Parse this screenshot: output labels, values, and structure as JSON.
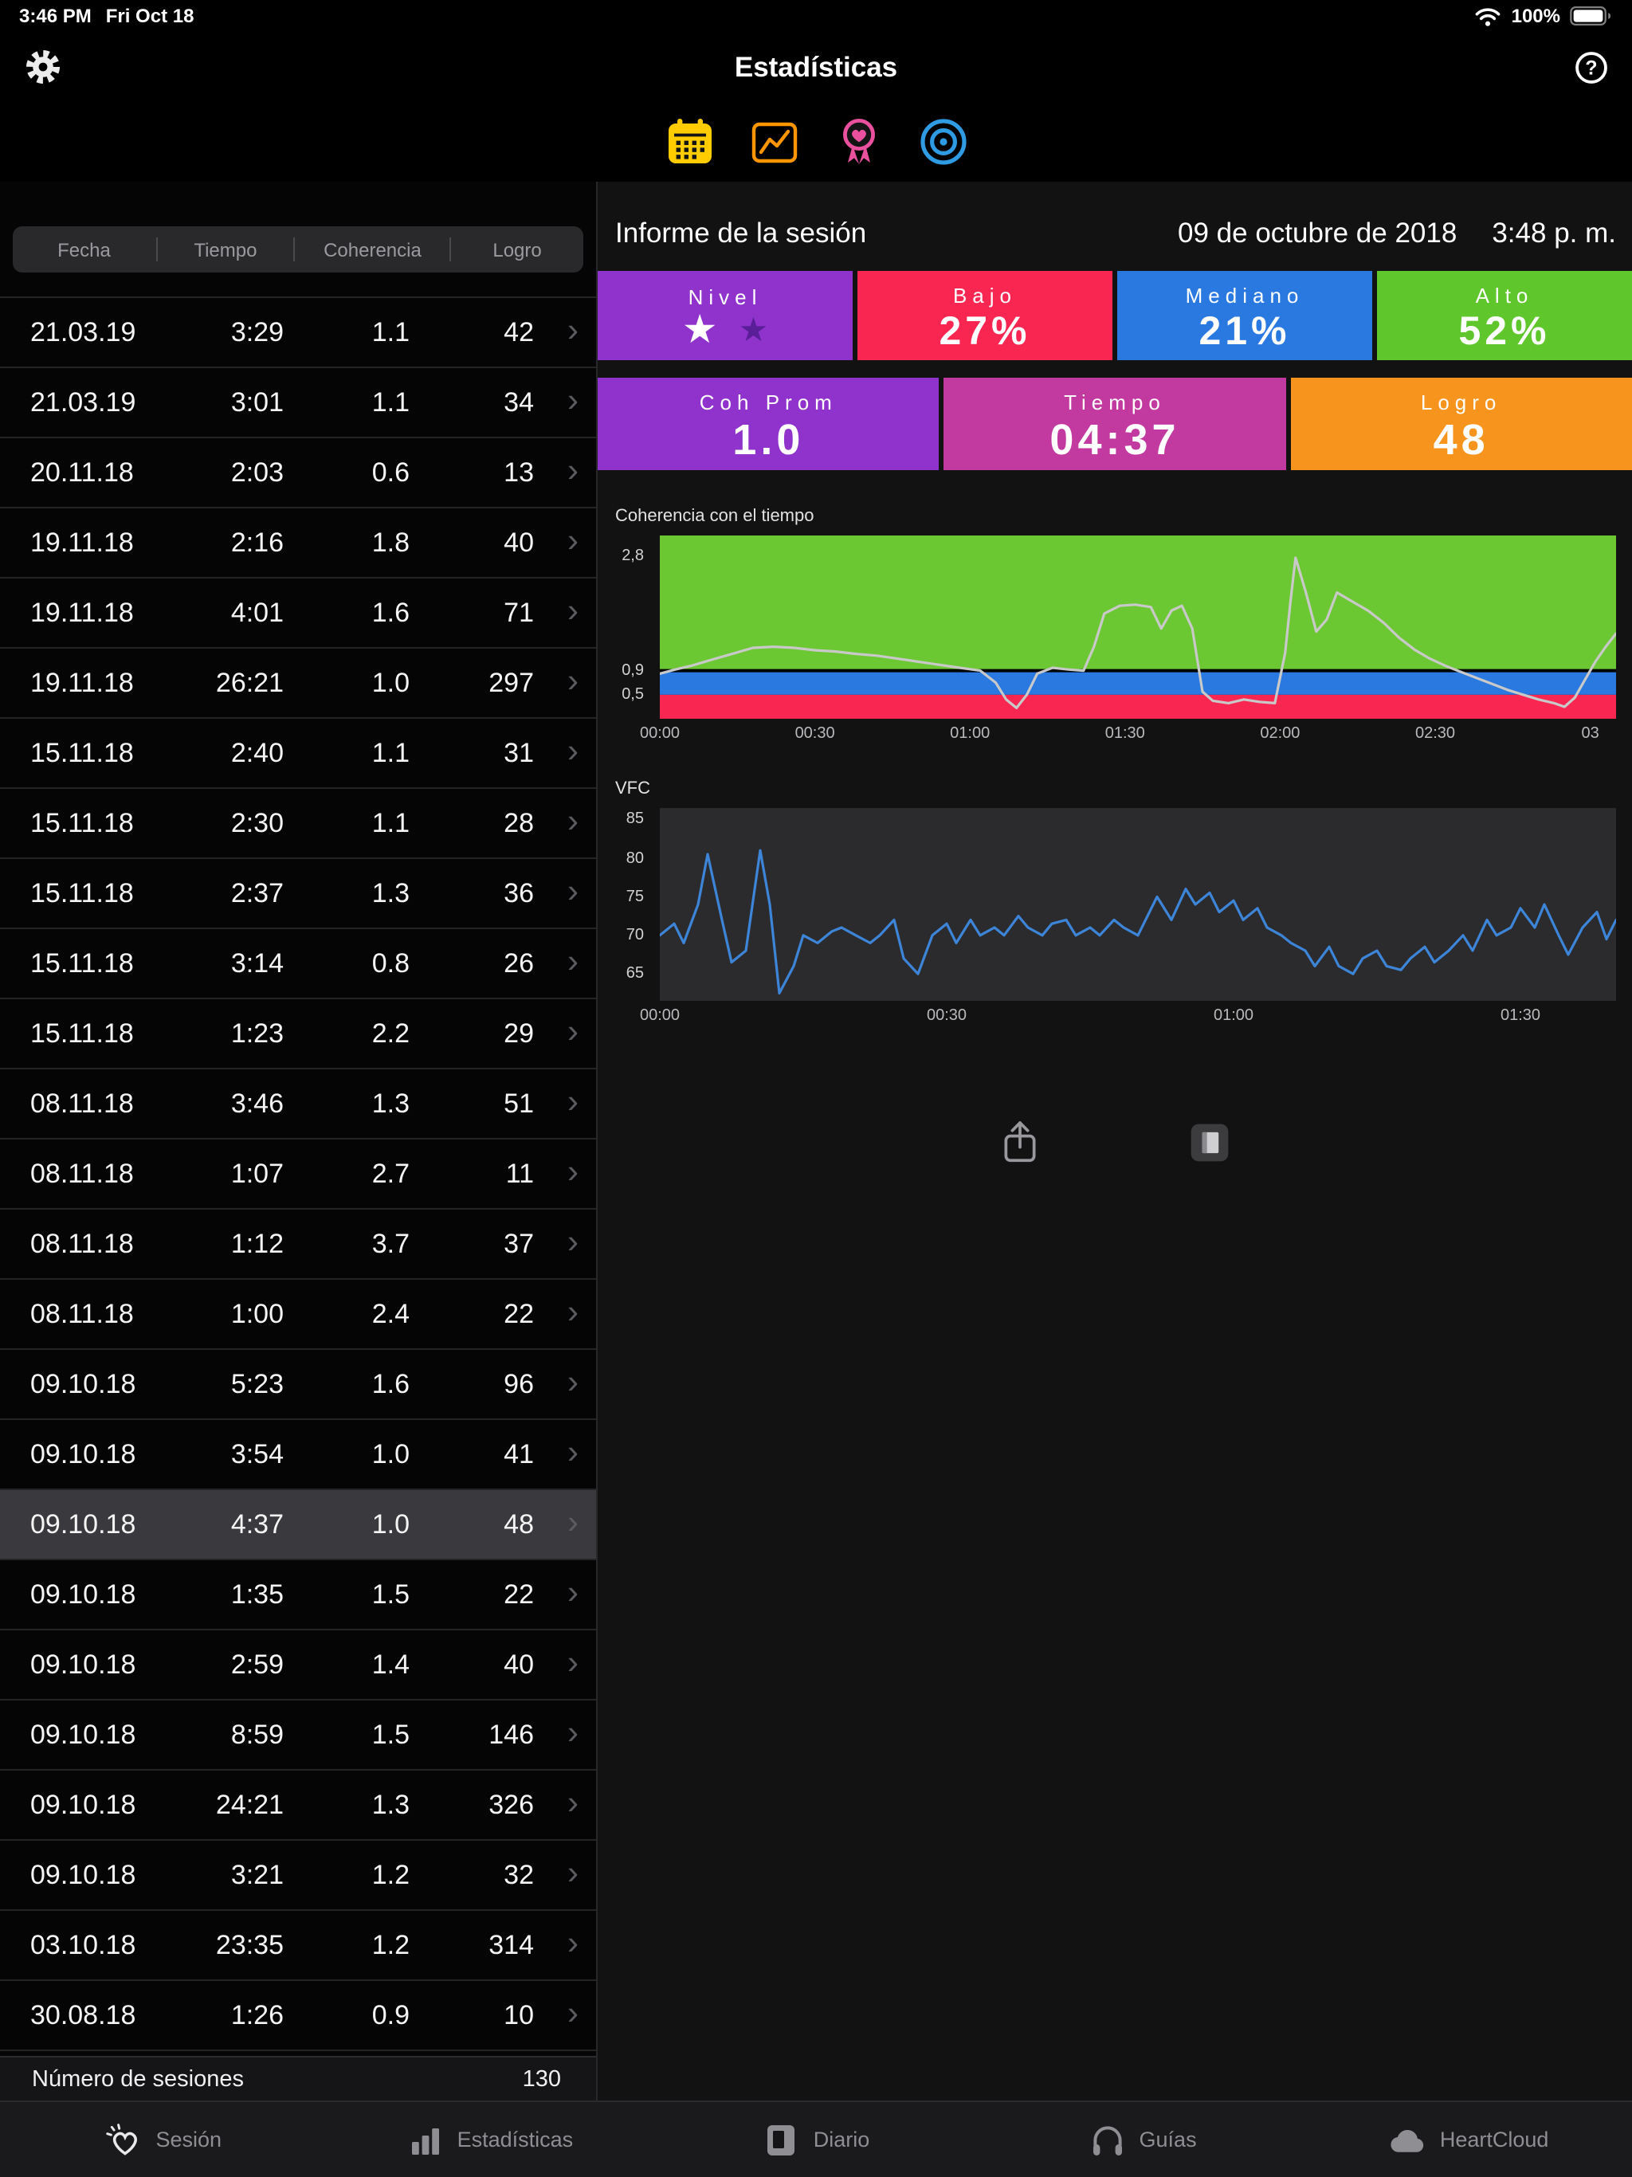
{
  "status_bar": {
    "time": "3:46 PM",
    "date": "Fri Oct 18",
    "battery_percent": "100%"
  },
  "nav": {
    "title": "Estadísticas"
  },
  "subtabs": [
    {
      "name": "sessions",
      "icon": "calendar-icon",
      "selected": true
    },
    {
      "name": "progress",
      "icon": "line-chart-icon",
      "selected": false
    },
    {
      "name": "awards",
      "icon": "award-icon",
      "selected": false
    },
    {
      "name": "goals",
      "icon": "target-icon",
      "selected": false
    }
  ],
  "table": {
    "columns": [
      "Fecha",
      "Tiempo",
      "Coherencia",
      "Logro"
    ],
    "rows": [
      {
        "fecha": "21.03.19",
        "tiempo": "3:29",
        "coherencia": "1.1",
        "logro": "42"
      },
      {
        "fecha": "21.03.19",
        "tiempo": "3:01",
        "coherencia": "1.1",
        "logro": "34"
      },
      {
        "fecha": "20.11.18",
        "tiempo": "2:03",
        "coherencia": "0.6",
        "logro": "13"
      },
      {
        "fecha": "19.11.18",
        "tiempo": "2:16",
        "coherencia": "1.8",
        "logro": "40"
      },
      {
        "fecha": "19.11.18",
        "tiempo": "4:01",
        "coherencia": "1.6",
        "logro": "71"
      },
      {
        "fecha": "19.11.18",
        "tiempo": "26:21",
        "coherencia": "1.0",
        "logro": "297"
      },
      {
        "fecha": "15.11.18",
        "tiempo": "2:40",
        "coherencia": "1.1",
        "logro": "31"
      },
      {
        "fecha": "15.11.18",
        "tiempo": "2:30",
        "coherencia": "1.1",
        "logro": "28"
      },
      {
        "fecha": "15.11.18",
        "tiempo": "2:37",
        "coherencia": "1.3",
        "logro": "36"
      },
      {
        "fecha": "15.11.18",
        "tiempo": "3:14",
        "coherencia": "0.8",
        "logro": "26"
      },
      {
        "fecha": "15.11.18",
        "tiempo": "1:23",
        "coherencia": "2.2",
        "logro": "29"
      },
      {
        "fecha": "08.11.18",
        "tiempo": "3:46",
        "coherencia": "1.3",
        "logro": "51"
      },
      {
        "fecha": "08.11.18",
        "tiempo": "1:07",
        "coherencia": "2.7",
        "logro": "11"
      },
      {
        "fecha": "08.11.18",
        "tiempo": "1:12",
        "coherencia": "3.7",
        "logro": "37"
      },
      {
        "fecha": "08.11.18",
        "tiempo": "1:00",
        "coherencia": "2.4",
        "logro": "22"
      },
      {
        "fecha": "09.10.18",
        "tiempo": "5:23",
        "coherencia": "1.6",
        "logro": "96"
      },
      {
        "fecha": "09.10.18",
        "tiempo": "3:54",
        "coherencia": "1.0",
        "logro": "41"
      },
      {
        "fecha": "09.10.18",
        "tiempo": "4:37",
        "coherencia": "1.0",
        "logro": "48",
        "selected": true
      },
      {
        "fecha": "09.10.18",
        "tiempo": "1:35",
        "coherencia": "1.5",
        "logro": "22"
      },
      {
        "fecha": "09.10.18",
        "tiempo": "2:59",
        "coherencia": "1.4",
        "logro": "40"
      },
      {
        "fecha": "09.10.18",
        "tiempo": "8:59",
        "coherencia": "1.5",
        "logro": "146"
      },
      {
        "fecha": "09.10.18",
        "tiempo": "24:21",
        "coherencia": "1.3",
        "logro": "326"
      },
      {
        "fecha": "09.10.18",
        "tiempo": "3:21",
        "coherencia": "1.2",
        "logro": "32"
      },
      {
        "fecha": "03.10.18",
        "tiempo": "23:35",
        "coherencia": "1.2",
        "logro": "314"
      },
      {
        "fecha": "30.08.18",
        "tiempo": "1:26",
        "coherencia": "0.9",
        "logro": "10"
      }
    ],
    "footer_label": "Número de sesiones",
    "footer_value": "130"
  },
  "report": {
    "title": "Informe de la sesión",
    "date": "09 de octubre de 2018",
    "time": "3:48 p. m.",
    "stats_row1": [
      {
        "label": "Nivel",
        "color": "#8F33CC",
        "stars": [
          "#FFFFFF",
          "#5A1E99"
        ]
      },
      {
        "label": "Bajo",
        "value": "27%",
        "color": "#F92652"
      },
      {
        "label": "Mediano",
        "value": "21%",
        "color": "#2979E0"
      },
      {
        "label": "Alto",
        "value": "52%",
        "color": "#5FC62B"
      }
    ],
    "stats_row2": [
      {
        "label": "Coh Prom",
        "value": "1.0",
        "color": "#8F33CC"
      },
      {
        "label": "Tiempo",
        "value": "04:37",
        "color": "#C23AA0"
      },
      {
        "label": "Logro",
        "value": "48",
        "color": "#F7941D"
      }
    ]
  },
  "chart_data": [
    {
      "type": "line",
      "title": "Coherencia con el tiempo",
      "x_domain": [
        0,
        185
      ],
      "y_domain": [
        0.1,
        3.15
      ],
      "line_color": "#c9c9c9",
      "zones": [
        {
          "from": 0.1,
          "to": 0.5,
          "color": "#F92652",
          "label": "low"
        },
        {
          "from": 0.5,
          "to": 0.9,
          "color": "#2979E0",
          "label": "medium"
        },
        {
          "from": 0.9,
          "to": 3.15,
          "color": "#6CC832",
          "label": "high"
        }
      ],
      "threshold": {
        "value": 0.9,
        "color": "#000000"
      },
      "y_ticks": [
        {
          "value": 2.8,
          "label": "2,8"
        },
        {
          "value": 0.9,
          "label": "0,9"
        },
        {
          "value": 0.5,
          "label": "0,5"
        }
      ],
      "x_ticks": [
        {
          "value": 0,
          "label": "00:00"
        },
        {
          "value": 30,
          "label": "00:30"
        },
        {
          "value": 60,
          "label": "01:00"
        },
        {
          "value": 90,
          "label": "01:30"
        },
        {
          "value": 120,
          "label": "02:00"
        },
        {
          "value": 150,
          "label": "02:30"
        },
        {
          "value": 180,
          "label": "03"
        }
      ],
      "points": [
        [
          0,
          0.85
        ],
        [
          3,
          0.92
        ],
        [
          6,
          0.98
        ],
        [
          10,
          1.08
        ],
        [
          14,
          1.18
        ],
        [
          18,
          1.28
        ],
        [
          22,
          1.3
        ],
        [
          26,
          1.28
        ],
        [
          30,
          1.24
        ],
        [
          34,
          1.22
        ],
        [
          38,
          1.18
        ],
        [
          42,
          1.15
        ],
        [
          46,
          1.1
        ],
        [
          50,
          1.05
        ],
        [
          54,
          1.0
        ],
        [
          58,
          0.95
        ],
        [
          62,
          0.9
        ],
        [
          65,
          0.7
        ],
        [
          67,
          0.42
        ],
        [
          69,
          0.28
        ],
        [
          71,
          0.5
        ],
        [
          73,
          0.85
        ],
        [
          76,
          0.95
        ],
        [
          79,
          0.92
        ],
        [
          82,
          0.9
        ],
        [
          84,
          1.3
        ],
        [
          86,
          1.85
        ],
        [
          89,
          1.98
        ],
        [
          92,
          2.0
        ],
        [
          95,
          1.96
        ],
        [
          97,
          1.6
        ],
        [
          99,
          1.9
        ],
        [
          101,
          1.98
        ],
        [
          103,
          1.6
        ],
        [
          105,
          0.55
        ],
        [
          107,
          0.4
        ],
        [
          110,
          0.36
        ],
        [
          113,
          0.42
        ],
        [
          116,
          0.38
        ],
        [
          119,
          0.36
        ],
        [
          121,
          1.2
        ],
        [
          122,
          2.05
        ],
        [
          123,
          2.78
        ],
        [
          125,
          2.2
        ],
        [
          127,
          1.55
        ],
        [
          129,
          1.75
        ],
        [
          131,
          2.2
        ],
        [
          134,
          2.05
        ],
        [
          137,
          1.9
        ],
        [
          140,
          1.7
        ],
        [
          143,
          1.45
        ],
        [
          146,
          1.25
        ],
        [
          149,
          1.1
        ],
        [
          152,
          0.98
        ],
        [
          155,
          0.88
        ],
        [
          158,
          0.78
        ],
        [
          161,
          0.68
        ],
        [
          164,
          0.58
        ],
        [
          167,
          0.5
        ],
        [
          170,
          0.42
        ],
        [
          173,
          0.36
        ],
        [
          175,
          0.3
        ],
        [
          177,
          0.45
        ],
        [
          179,
          0.75
        ],
        [
          181,
          1.05
        ],
        [
          183,
          1.3
        ],
        [
          185,
          1.52
        ]
      ]
    },
    {
      "type": "line",
      "title": "VFC",
      "x_domain": [
        0,
        100
      ],
      "y_domain": [
        61.5,
        86.5
      ],
      "bg": "#2b2b2d",
      "line_color": "#3D85D8",
      "y_ticks": [
        {
          "value": 85,
          "label": "85"
        },
        {
          "value": 80,
          "label": "80"
        },
        {
          "value": 75,
          "label": "75"
        },
        {
          "value": 70,
          "label": "70"
        },
        {
          "value": 65,
          "label": "65"
        }
      ],
      "x_ticks": [
        {
          "value": 0,
          "label": "00:00"
        },
        {
          "value": 30,
          "label": "00:30"
        },
        {
          "value": 60,
          "label": "01:00"
        },
        {
          "value": 90,
          "label": "01:30"
        }
      ],
      "points": [
        [
          0,
          70
        ],
        [
          1.5,
          71.5
        ],
        [
          2.5,
          69
        ],
        [
          4,
          74
        ],
        [
          5,
          80.5
        ],
        [
          6.5,
          72
        ],
        [
          7.5,
          66.5
        ],
        [
          9,
          68
        ],
        [
          10.5,
          81
        ],
        [
          11.5,
          74
        ],
        [
          12.5,
          62.5
        ],
        [
          14,
          66
        ],
        [
          15,
          70
        ],
        [
          16.5,
          69
        ],
        [
          18,
          70.5
        ],
        [
          19,
          71
        ],
        [
          20.5,
          70
        ],
        [
          22,
          69
        ],
        [
          23,
          70
        ],
        [
          24.5,
          72
        ],
        [
          25.5,
          67
        ],
        [
          27,
          65
        ],
        [
          28.5,
          70
        ],
        [
          30,
          71.5
        ],
        [
          31,
          69
        ],
        [
          32.5,
          72
        ],
        [
          33.5,
          70
        ],
        [
          35,
          71
        ],
        [
          36,
          70
        ],
        [
          37.5,
          72.5
        ],
        [
          38.5,
          71
        ],
        [
          40,
          70
        ],
        [
          41,
          71.5
        ],
        [
          42.5,
          72
        ],
        [
          43.5,
          70
        ],
        [
          45,
          71
        ],
        [
          46,
          70
        ],
        [
          47.5,
          72
        ],
        [
          48.5,
          71
        ],
        [
          50,
          70
        ],
        [
          51,
          72.5
        ],
        [
          52,
          75
        ],
        [
          53.5,
          72
        ],
        [
          55,
          76
        ],
        [
          56,
          74
        ],
        [
          57.5,
          75.5
        ],
        [
          58.5,
          73
        ],
        [
          60,
          74.5
        ],
        [
          61,
          72
        ],
        [
          62.5,
          73.5
        ],
        [
          63.5,
          71
        ],
        [
          65,
          70
        ],
        [
          66,
          69
        ],
        [
          67.5,
          68
        ],
        [
          68.5,
          66
        ],
        [
          70,
          68.5
        ],
        [
          71,
          66
        ],
        [
          72.5,
          65
        ],
        [
          73.5,
          67
        ],
        [
          75,
          68
        ],
        [
          76,
          66
        ],
        [
          77.5,
          65.5
        ],
        [
          78.5,
          67
        ],
        [
          80,
          68.5
        ],
        [
          81,
          66.5
        ],
        [
          82.5,
          68
        ],
        [
          84,
          70
        ],
        [
          85,
          68
        ],
        [
          86.5,
          72
        ],
        [
          87.5,
          70
        ],
        [
          89,
          71
        ],
        [
          90,
          73.5
        ],
        [
          91.5,
          71
        ],
        [
          92.5,
          74
        ],
        [
          94,
          70
        ],
        [
          95,
          67.5
        ],
        [
          96.5,
          71
        ],
        [
          98,
          73
        ],
        [
          99,
          69.5
        ],
        [
          100,
          72
        ]
      ]
    }
  ],
  "tab_bar": {
    "items": [
      {
        "icon": "heart-sparkle-icon",
        "label": "Sesión",
        "active": true
      },
      {
        "icon": "bar-chart-icon",
        "label": "Estadísticas",
        "active": false
      },
      {
        "icon": "journal-icon",
        "label": "Diario",
        "active": false
      },
      {
        "icon": "headphones-icon",
        "label": "Guías",
        "active": false
      },
      {
        "icon": "cloud-icon",
        "label": "HeartCloud",
        "active": false
      }
    ]
  }
}
